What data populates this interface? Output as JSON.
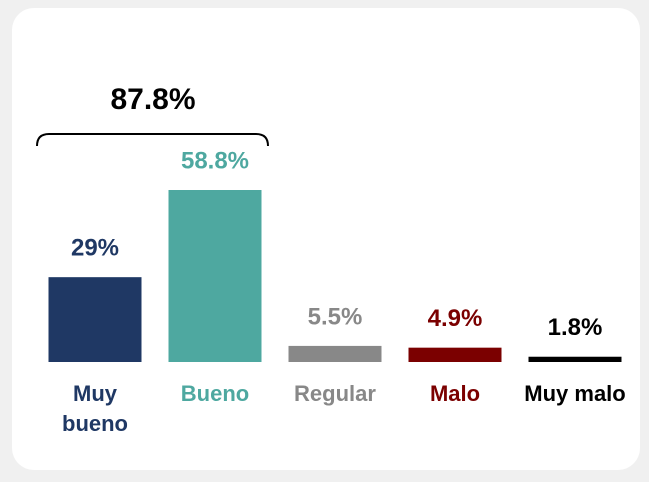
{
  "chart_data": {
    "type": "bar",
    "annotation": "87.8%",
    "categories": [
      "Muy bueno",
      "Bueno",
      "Regular",
      "Malo",
      "Muy malo"
    ],
    "values": [
      29,
      58.8,
      5.5,
      4.9,
      1.8
    ],
    "value_labels": [
      "29%",
      "58.8%",
      "5.5%",
      "4.9%",
      "1.8%"
    ],
    "colors": [
      "#1f3864",
      "#4ea8a0",
      "#888888",
      "#7b0000",
      "#000000"
    ]
  }
}
